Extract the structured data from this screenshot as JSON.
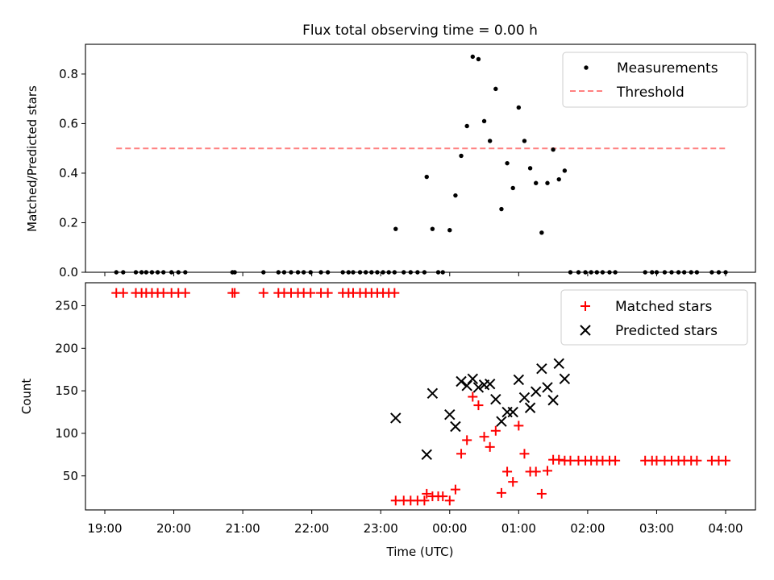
{
  "chart_data": [
    {
      "type": "scatter",
      "title": "Flux total observing time = 0.00 h",
      "xlabel": "",
      "ylabel": "Matched/Predicted stars",
      "xlim": [
        "19:00",
        "04:00"
      ],
      "ylim": [
        0,
        0.92
      ],
      "yticks": [
        "0.0",
        "0.2",
        "0.4",
        "0.6",
        "0.8"
      ],
      "yticks_values": [
        0,
        0.2,
        0.4,
        0.6,
        0.8
      ],
      "grid": false,
      "legend_position": "top-right",
      "series": [
        {
          "name": "Measurements",
          "kind": "scatter",
          "color": "#000000",
          "marker": "dot",
          "points": [
            [
              "19:10",
              0
            ],
            [
              "19:16",
              0
            ],
            [
              "19:27",
              0
            ],
            [
              "19:32",
              0
            ],
            [
              "19:36",
              0
            ],
            [
              "19:41",
              0
            ],
            [
              "19:46",
              0
            ],
            [
              "19:51",
              0
            ],
            [
              "19:58",
              0
            ],
            [
              "20:04",
              0
            ],
            [
              "20:10",
              0
            ],
            [
              "20:51",
              0
            ],
            [
              "20:53",
              0
            ],
            [
              "21:18",
              0
            ],
            [
              "21:31",
              0
            ],
            [
              "21:36",
              0
            ],
            [
              "21:42",
              0
            ],
            [
              "21:48",
              0
            ],
            [
              "21:53",
              0
            ],
            [
              "21:59",
              0
            ],
            [
              "22:08",
              0
            ],
            [
              "22:14",
              0
            ],
            [
              "22:27",
              0
            ],
            [
              "22:32",
              0
            ],
            [
              "22:36",
              0
            ],
            [
              "22:42",
              0
            ],
            [
              "22:47",
              0
            ],
            [
              "22:52",
              0
            ],
            [
              "22:57",
              0
            ],
            [
              "23:02",
              0
            ],
            [
              "23:07",
              0
            ],
            [
              "23:12",
              0
            ],
            [
              "23:13",
              0.175
            ],
            [
              "23:20",
              0
            ],
            [
              "23:26",
              0
            ],
            [
              "23:32",
              0
            ],
            [
              "23:38",
              0
            ],
            [
              "23:40",
              0.385
            ],
            [
              "23:45",
              0.175
            ],
            [
              "23:50",
              0
            ],
            [
              "23:54",
              0
            ],
            [
              "24:00",
              0.17
            ],
            [
              "24:05",
              0.31
            ],
            [
              "24:10",
              0.47
            ],
            [
              "24:15",
              0.59
            ],
            [
              "24:20",
              0.87
            ],
            [
              "24:25",
              0.86
            ],
            [
              "24:30",
              0.61
            ],
            [
              "24:35",
              0.53
            ],
            [
              "24:40",
              0.74
            ],
            [
              "24:45",
              0.255
            ],
            [
              "24:50",
              0.44
            ],
            [
              "24:55",
              0.34
            ],
            [
              "25:00",
              0.665
            ],
            [
              "25:05",
              0.53
            ],
            [
              "25:10",
              0.42
            ],
            [
              "25:15",
              0.36
            ],
            [
              "25:20",
              0.16
            ],
            [
              "25:25",
              0.36
            ],
            [
              "25:30",
              0.495
            ],
            [
              "25:35",
              0.375
            ],
            [
              "25:40",
              0.41
            ],
            [
              "25:45",
              0
            ],
            [
              "25:52",
              0
            ],
            [
              "25:58",
              0
            ],
            [
              "26:03",
              0
            ],
            [
              "26:08",
              0
            ],
            [
              "26:13",
              0
            ],
            [
              "26:19",
              0
            ],
            [
              "26:24",
              0
            ],
            [
              "26:50",
              0
            ],
            [
              "26:56",
              0
            ],
            [
              "27:00",
              0
            ],
            [
              "27:07",
              0
            ],
            [
              "27:13",
              0
            ],
            [
              "27:19",
              0
            ],
            [
              "27:24",
              0
            ],
            [
              "27:30",
              0
            ],
            [
              "27:35",
              0
            ],
            [
              "27:48",
              0
            ],
            [
              "27:54",
              0
            ],
            [
              "28:00",
              0
            ]
          ]
        },
        {
          "name": "Threshold",
          "kind": "line",
          "style": "dashed",
          "color": "#ff8080",
          "points": [
            [
              "19:10",
              0.5
            ],
            [
              "28:00",
              0.5
            ]
          ]
        }
      ]
    },
    {
      "type": "scatter",
      "title": "",
      "xlabel": "Time (UTC)",
      "ylabel": "Count",
      "xlim": [
        "19:00",
        "04:00"
      ],
      "ylim": [
        10,
        277
      ],
      "yticks": [
        "50",
        "100",
        "150",
        "200",
        "250"
      ],
      "yticks_values": [
        50,
        100,
        150,
        200,
        250
      ],
      "xticks": [
        "19:00",
        "20:00",
        "21:00",
        "22:00",
        "23:00",
        "00:00",
        "01:00",
        "02:00",
        "03:00",
        "04:00"
      ],
      "grid": false,
      "legend_position": "top-right",
      "series": [
        {
          "name": "Matched stars",
          "kind": "scatter",
          "color": "#ff0000",
          "marker": "plus",
          "points": [
            [
              "19:10",
              265
            ],
            [
              "19:16",
              265
            ],
            [
              "19:27",
              265
            ],
            [
              "19:32",
              265
            ],
            [
              "19:36",
              265
            ],
            [
              "19:41",
              265
            ],
            [
              "19:46",
              265
            ],
            [
              "19:51",
              265
            ],
            [
              "19:58",
              265
            ],
            [
              "20:04",
              265
            ],
            [
              "20:10",
              265
            ],
            [
              "20:51",
              265
            ],
            [
              "20:53",
              265
            ],
            [
              "21:18",
              265
            ],
            [
              "21:31",
              265
            ],
            [
              "21:36",
              265
            ],
            [
              "21:42",
              265
            ],
            [
              "21:48",
              265
            ],
            [
              "21:53",
              265
            ],
            [
              "21:59",
              265
            ],
            [
              "22:08",
              265
            ],
            [
              "22:14",
              265
            ],
            [
              "22:27",
              265
            ],
            [
              "22:32",
              265
            ],
            [
              "22:36",
              265
            ],
            [
              "22:42",
              265
            ],
            [
              "22:47",
              265
            ],
            [
              "22:52",
              265
            ],
            [
              "22:57",
              265
            ],
            [
              "23:02",
              265
            ],
            [
              "23:07",
              265
            ],
            [
              "23:12",
              265
            ],
            [
              "23:13",
              21
            ],
            [
              "23:20",
              21
            ],
            [
              "23:26",
              21
            ],
            [
              "23:32",
              21
            ],
            [
              "23:38",
              21
            ],
            [
              "23:40",
              29
            ],
            [
              "23:45",
              26
            ],
            [
              "23:50",
              26
            ],
            [
              "23:54",
              26
            ],
            [
              "24:00",
              21
            ],
            [
              "24:05",
              34
            ],
            [
              "24:10",
              76
            ],
            [
              "24:15",
              92
            ],
            [
              "24:20",
              143
            ],
            [
              "24:25",
              133
            ],
            [
              "24:30",
              96
            ],
            [
              "24:35",
              84
            ],
            [
              "24:40",
              103
            ],
            [
              "24:45",
              30
            ],
            [
              "24:50",
              55
            ],
            [
              "24:55",
              43
            ],
            [
              "25:00",
              109
            ],
            [
              "25:05",
              76
            ],
            [
              "25:10",
              55
            ],
            [
              "25:15",
              55
            ],
            [
              "25:20",
              29
            ],
            [
              "25:25",
              56
            ],
            [
              "25:30",
              69
            ],
            [
              "25:35",
              69
            ],
            [
              "25:40",
              68
            ],
            [
              "25:45",
              68
            ],
            [
              "25:52",
              68
            ],
            [
              "25:58",
              68
            ],
            [
              "26:03",
              68
            ],
            [
              "26:08",
              68
            ],
            [
              "26:13",
              68
            ],
            [
              "26:19",
              68
            ],
            [
              "26:24",
              68
            ],
            [
              "26:50",
              68
            ],
            [
              "26:56",
              68
            ],
            [
              "27:00",
              68
            ],
            [
              "27:07",
              68
            ],
            [
              "27:13",
              68
            ],
            [
              "27:19",
              68
            ],
            [
              "27:24",
              68
            ],
            [
              "27:30",
              68
            ],
            [
              "27:35",
              68
            ],
            [
              "27:48",
              68
            ],
            [
              "27:54",
              68
            ],
            [
              "28:00",
              68
            ]
          ]
        },
        {
          "name": "Predicted stars",
          "kind": "scatter",
          "color": "#000000",
          "marker": "cross",
          "points": [
            [
              "23:13",
              118
            ],
            [
              "23:40",
              75
            ],
            [
              "23:45",
              147
            ],
            [
              "24:00",
              122
            ],
            [
              "24:05",
              108
            ],
            [
              "24:10",
              161
            ],
            [
              "24:15",
              156
            ],
            [
              "24:20",
              164
            ],
            [
              "24:25",
              154
            ],
            [
              "24:30",
              157
            ],
            [
              "24:35",
              158
            ],
            [
              "24:40",
              140
            ],
            [
              "24:45",
              114
            ],
            [
              "24:50",
              125
            ],
            [
              "24:55",
              125
            ],
            [
              "25:00",
              163
            ],
            [
              "25:05",
              142
            ],
            [
              "25:10",
              130
            ],
            [
              "25:15",
              149
            ],
            [
              "25:20",
              176
            ],
            [
              "25:25",
              154
            ],
            [
              "25:30",
              139
            ],
            [
              "25:35",
              182
            ],
            [
              "25:40",
              164
            ]
          ]
        }
      ]
    }
  ]
}
